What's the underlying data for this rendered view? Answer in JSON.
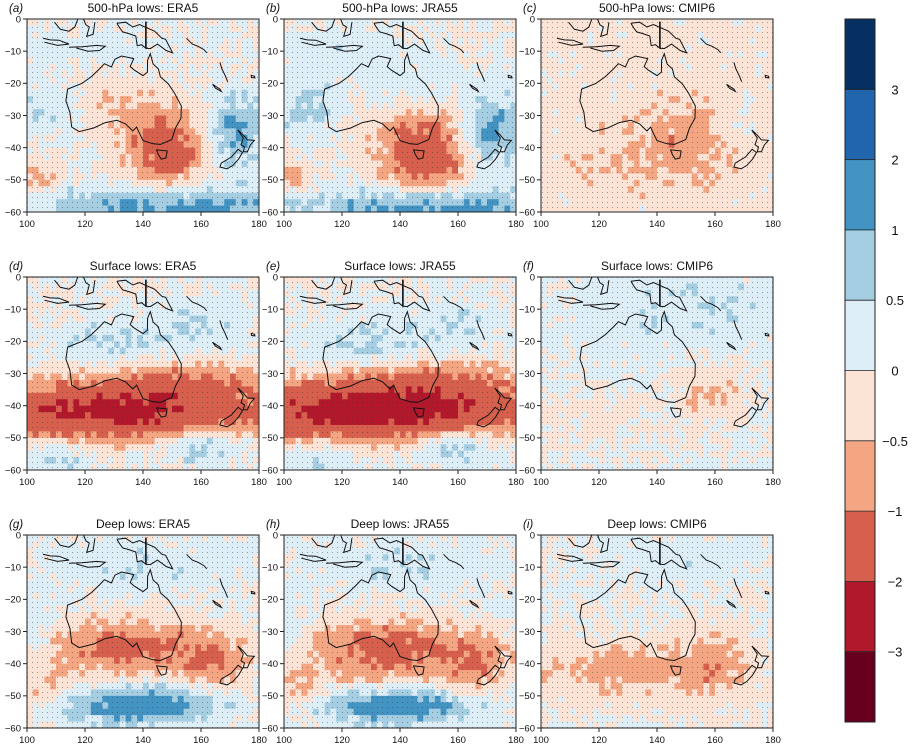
{
  "chart_data": {
    "type": "heatmap",
    "x_ticks": [
      100,
      120,
      140,
      160,
      180
    ],
    "y_ticks": [
      0,
      -10,
      -20,
      -30,
      -40,
      -50,
      -60
    ],
    "xlim": [
      100,
      180
    ],
    "ylim": [
      -60,
      0
    ],
    "grid": false,
    "colorbar": {
      "position": "right",
      "bounds": [
        -4,
        -3,
        -2,
        -1,
        -0.5,
        0,
        0.5,
        1,
        2,
        3,
        4
      ],
      "tick_labels": [
        "3",
        "2",
        "1",
        "0.5",
        "0",
        "−0.5",
        "−1",
        "−2",
        "−3"
      ],
      "tick_values": [
        3,
        2,
        1,
        0.5,
        0,
        -0.5,
        -1,
        -2,
        -3
      ],
      "colors": [
        "#67001f",
        "#b2182b",
        "#d6604d",
        "#f4a582",
        "#fbe3d6",
        "#deeef7",
        "#a6cee3",
        "#4393c3",
        "#2166ac",
        "#053061"
      ]
    },
    "panels": [
      {
        "letter": "(a)",
        "title": "500-hPa lows: ERA5",
        "field": "500hPa",
        "dataset": "ERA5"
      },
      {
        "letter": "(b)",
        "title": "500-hPa lows: JRA55",
        "field": "500hPa",
        "dataset": "JRA55"
      },
      {
        "letter": "(c)",
        "title": "500-hPa lows: CMIP6",
        "field": "500hPa",
        "dataset": "CMIP6"
      },
      {
        "letter": "(d)",
        "title": "Surface lows: ERA5",
        "field": "surface",
        "dataset": "ERA5"
      },
      {
        "letter": "(e)",
        "title": "Surface lows: JRA55",
        "field": "surface",
        "dataset": "JRA55"
      },
      {
        "letter": "(f)",
        "title": "Surface lows: CMIP6",
        "field": "surface",
        "dataset": "CMIP6"
      },
      {
        "letter": "(g)",
        "title": "Deep lows: ERA5",
        "field": "deep",
        "dataset": "ERA5"
      },
      {
        "letter": "(h)",
        "title": "Deep lows: JRA55",
        "field": "deep",
        "dataset": "JRA55"
      },
      {
        "letter": "(i)",
        "title": "Deep lows: CMIP6",
        "field": "deep",
        "dataset": "CMIP6"
      }
    ]
  }
}
